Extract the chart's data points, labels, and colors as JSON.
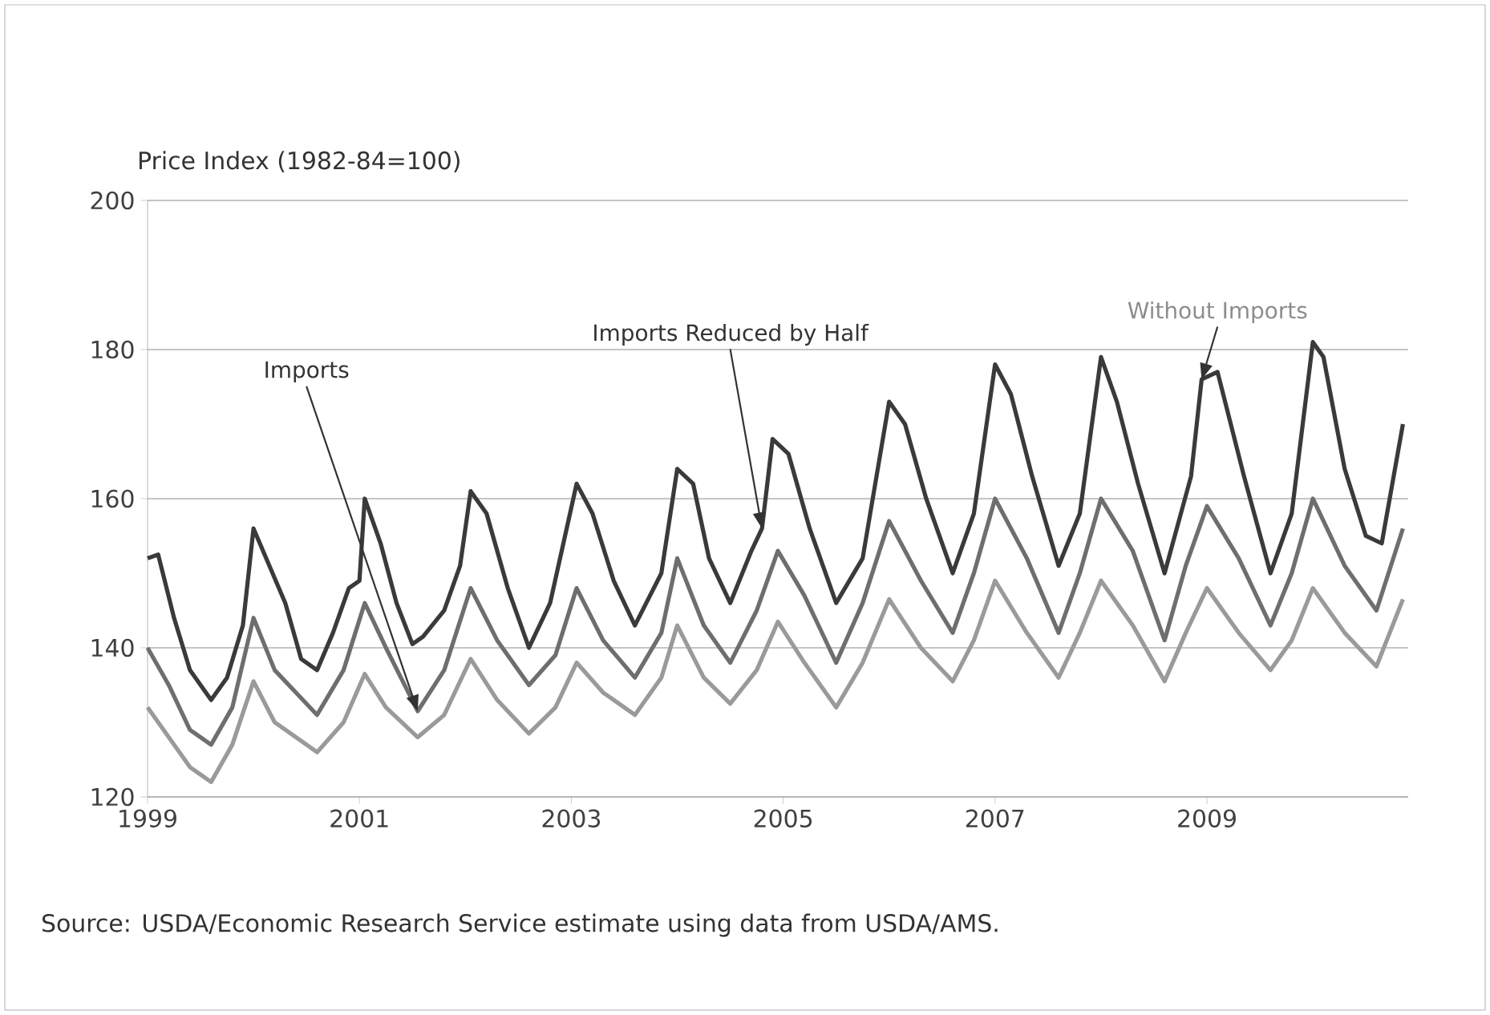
{
  "chart_data": {
    "type": "line",
    "ylabel": "Price Index (1982-84=100)",
    "xlim": [
      1999,
      2010.9
    ],
    "xticks": [
      1999,
      2001,
      2003,
      2005,
      2007,
      2009
    ],
    "ylim": [
      120,
      200
    ],
    "yticks": [
      120,
      140,
      160,
      180,
      200
    ],
    "grid": "y",
    "marker": "none",
    "line_style": "solid",
    "series": [
      {
        "color": "#3a3a3a",
        "x": [
          1999.0,
          1999.1,
          1999.25,
          1999.4,
          1999.6,
          1999.75,
          1999.9,
          2000.0,
          2000.15,
          2000.3,
          2000.45,
          2000.6,
          2000.75,
          2000.9,
          2001.0,
          2001.05,
          2001.2,
          2001.35,
          2001.5,
          2001.6,
          2001.8,
          2001.95,
          2002.05,
          2002.2,
          2002.4,
          2002.6,
          2002.8,
          2003.05,
          2003.2,
          2003.4,
          2003.6,
          2003.85,
          2004.0,
          2004.15,
          2004.3,
          2004.5,
          2004.7,
          2004.8,
          2004.9,
          2005.05,
          2005.25,
          2005.5,
          2005.75,
          2006.0,
          2006.15,
          2006.35,
          2006.6,
          2006.8,
          2007.0,
          2007.15,
          2007.35,
          2007.6,
          2007.8,
          2008.0,
          2008.15,
          2008.35,
          2008.6,
          2008.85,
          2008.95,
          2009.1,
          2009.35,
          2009.6,
          2009.8,
          2010.0,
          2010.1,
          2010.3,
          2010.5,
          2010.65,
          2010.85
        ],
        "values": [
          152,
          152.5,
          144,
          137,
          133,
          136,
          143,
          156,
          151,
          146,
          138.5,
          137,
          142,
          148,
          149,
          160,
          154,
          146,
          140.5,
          141.5,
          145,
          151,
          161,
          158,
          148,
          140,
          146,
          162,
          158,
          149,
          143,
          150,
          164,
          162,
          152,
          146,
          153,
          156,
          168,
          166,
          156,
          146,
          152,
          173,
          170,
          160,
          150,
          158,
          178,
          174,
          163,
          151,
          158,
          179,
          173,
          162,
          150,
          163,
          176,
          177,
          163,
          150,
          158,
          181,
          179,
          164,
          155,
          154,
          170
        ]
      },
      {
        "color": "#6e6e6e",
        "x": [
          1999.0,
          1999.2,
          1999.4,
          1999.6,
          1999.8,
          2000.0,
          2000.2,
          2000.4,
          2000.6,
          2000.85,
          2001.05,
          2001.25,
          2001.55,
          2001.8,
          2002.05,
          2002.3,
          2002.6,
          2002.85,
          2003.05,
          2003.3,
          2003.6,
          2003.85,
          2004.0,
          2004.25,
          2004.5,
          2004.75,
          2004.95,
          2005.2,
          2005.5,
          2005.75,
          2006.0,
          2006.3,
          2006.6,
          2006.8,
          2007.0,
          2007.3,
          2007.6,
          2007.8,
          2008.0,
          2008.3,
          2008.6,
          2008.8,
          2009.0,
          2009.3,
          2009.6,
          2009.8,
          2010.0,
          2010.3,
          2010.6,
          2010.85
        ],
        "values": [
          140,
          135,
          129,
          127,
          132,
          144,
          137,
          134,
          131,
          137,
          146,
          140,
          131.5,
          137,
          148,
          141,
          135,
          139,
          148,
          141,
          136,
          142,
          152,
          143,
          138,
          145,
          153,
          147,
          138,
          146,
          157,
          149,
          142,
          150,
          160,
          152,
          142,
          150,
          160,
          153,
          141,
          151,
          159,
          152,
          143,
          150,
          160,
          151,
          145,
          156
        ]
      },
      {
        "color": "#9a9a9a",
        "x": [
          1999.0,
          1999.2,
          1999.4,
          1999.6,
          1999.8,
          2000.0,
          2000.2,
          2000.4,
          2000.6,
          2000.85,
          2001.05,
          2001.25,
          2001.55,
          2001.8,
          2002.05,
          2002.3,
          2002.6,
          2002.85,
          2003.05,
          2003.3,
          2003.6,
          2003.85,
          2004.0,
          2004.25,
          2004.5,
          2004.75,
          2004.95,
          2005.2,
          2005.5,
          2005.75,
          2006.0,
          2006.3,
          2006.6,
          2006.8,
          2007.0,
          2007.3,
          2007.6,
          2007.8,
          2008.0,
          2008.3,
          2008.6,
          2008.8,
          2009.0,
          2009.3,
          2009.6,
          2009.8,
          2010.0,
          2010.3,
          2010.6,
          2010.85
        ],
        "values": [
          132,
          128,
          124,
          122,
          127,
          135.5,
          130,
          128,
          126,
          130,
          136.5,
          132,
          128,
          131,
          138.5,
          133,
          128.5,
          132,
          138,
          134,
          131,
          136,
          143,
          136,
          132.5,
          137,
          143.5,
          138,
          132,
          138,
          146.5,
          140,
          135.5,
          141,
          149,
          142,
          136,
          142,
          149,
          143,
          135.5,
          142,
          148,
          142,
          137,
          141,
          148,
          142,
          137.5,
          146.5
        ]
      }
    ],
    "annotations": [
      "Imports",
      "Imports Reduced by Half",
      {
        "text": "Without Imports",
        "x": 2008.95,
        "y": 176
      },
      "Source:  USDA/Economic Research Service estimate using data from USDA/AMS."
    ]
  }
}
